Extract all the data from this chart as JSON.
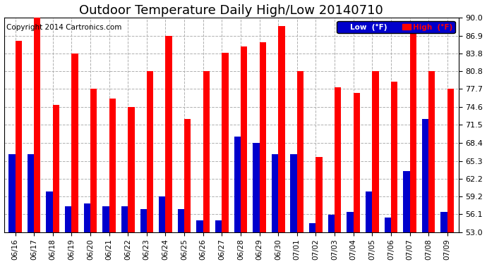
{
  "title": "Outdoor Temperature Daily High/Low 20140710",
  "copyright": "Copyright 2014 Cartronics.com",
  "legend_low": "Low  (°F)",
  "legend_high": "High  (°F)",
  "dates": [
    "06/16",
    "06/17",
    "06/18",
    "06/19",
    "06/20",
    "06/21",
    "06/22",
    "06/23",
    "06/24",
    "06/25",
    "06/26",
    "06/27",
    "06/28",
    "06/29",
    "06/30",
    "07/01",
    "07/02",
    "07/03",
    "07/04",
    "07/05",
    "07/06",
    "07/07",
    "07/08",
    "07/09"
  ],
  "highs": [
    86.0,
    90.0,
    75.0,
    83.8,
    77.7,
    76.0,
    74.6,
    80.8,
    86.9,
    72.5,
    80.8,
    84.0,
    85.0,
    85.8,
    88.5,
    80.8,
    66.0,
    78.0,
    77.0,
    80.8,
    79.0,
    88.5,
    80.8,
    77.7
  ],
  "lows": [
    66.5,
    66.5,
    60.0,
    57.5,
    58.0,
    57.5,
    57.5,
    57.0,
    59.2,
    57.0,
    55.0,
    55.0,
    69.5,
    68.4,
    66.5,
    66.5,
    54.5,
    56.0,
    56.5,
    60.0,
    55.5,
    63.5,
    72.5,
    56.5
  ],
  "ymin": 53.0,
  "ymax": 90.0,
  "yticks": [
    53.0,
    56.1,
    59.2,
    62.2,
    65.3,
    68.4,
    71.5,
    74.6,
    77.7,
    80.8,
    83.8,
    86.9,
    90.0
  ],
  "bar_color_high": "#ff0000",
  "bar_color_low": "#0000cc",
  "background_color": "#ffffff",
  "grid_color": "#b0b0b0",
  "title_fontsize": 13,
  "copyright_fontsize": 7.5,
  "bar_width": 0.35
}
